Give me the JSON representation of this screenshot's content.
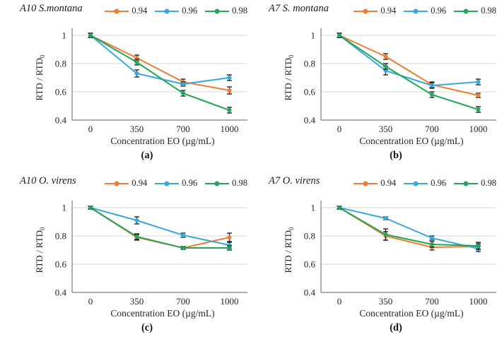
{
  "figure": {
    "background": "#ffffff",
    "grid_color": "#d9d9d9",
    "axis_color": "#7f7f7f",
    "text_color": "#262626",
    "error_bar_color": "#1a1a1a"
  },
  "chart_data": [
    {
      "type": "line",
      "panel": "a",
      "title": "A10 S.montana",
      "caption": "(a)",
      "xlabel": "Concentration EO (µg/mL)",
      "ylabel": "RTD / RTD",
      "ylabel_subscript": "0",
      "categories": [
        "0",
        "350",
        "700",
        "1000"
      ],
      "yticks": [
        1,
        0.8,
        0.6,
        0.4
      ],
      "ylim": [
        0.4,
        1.05
      ],
      "grid": true,
      "legend_position": "top-right",
      "series": [
        {
          "name": "0.94",
          "color": "#ED7D31",
          "values": [
            1.0,
            0.84,
            0.67,
            0.61
          ],
          "errors": [
            0.015,
            0.02,
            0.02,
            0.025
          ]
        },
        {
          "name": "0.96",
          "color": "#36A9DC",
          "values": [
            1.0,
            0.73,
            0.655,
            0.7
          ],
          "errors": [
            0.015,
            0.025,
            0.015,
            0.02
          ]
        },
        {
          "name": "0.98",
          "color": "#24A65A",
          "values": [
            1.0,
            0.81,
            0.59,
            0.47
          ],
          "errors": [
            0.015,
            0.02,
            0.02,
            0.02
          ]
        }
      ]
    },
    {
      "type": "line",
      "panel": "b",
      "title": "A7 S. montana",
      "caption": "(b)",
      "xlabel": "Concentration EO (µg/mL)",
      "ylabel": "RTD / RTD",
      "ylabel_subscript": "0",
      "categories": [
        "0",
        "350",
        "700",
        "1000"
      ],
      "yticks": [
        1,
        0.8,
        0.6,
        0.4
      ],
      "ylim": [
        0.4,
        1.05
      ],
      "grid": true,
      "legend_position": "top-right",
      "series": [
        {
          "name": "0.94",
          "color": "#ED7D31",
          "values": [
            1.0,
            0.85,
            0.65,
            0.575
          ],
          "errors": [
            0.015,
            0.02,
            0.02,
            0.015
          ]
        },
        {
          "name": "0.96",
          "color": "#36A9DC",
          "values": [
            1.0,
            0.75,
            0.645,
            0.67
          ],
          "errors": [
            0.015,
            0.03,
            0.02,
            0.02
          ]
        },
        {
          "name": "0.98",
          "color": "#24A65A",
          "values": [
            1.0,
            0.78,
            0.58,
            0.475
          ],
          "errors": [
            0.015,
            0.02,
            0.02,
            0.02
          ]
        }
      ]
    },
    {
      "type": "line",
      "panel": "c",
      "title": "A10 O. virens",
      "caption": "(c)",
      "xlabel": "Concentration EO (µg/mL)",
      "ylabel": "RTD / RTD",
      "ylabel_subscript": "0",
      "categories": [
        "0",
        "350",
        "700",
        "1000"
      ],
      "yticks": [
        1,
        0.8,
        0.6,
        0.4
      ],
      "ylim": [
        0.4,
        1.05
      ],
      "grid": true,
      "legend_position": "top-right",
      "series": [
        {
          "name": "0.94",
          "color": "#ED7D31",
          "values": [
            1.0,
            0.79,
            0.715,
            0.79
          ],
          "errors": [
            0.01,
            0.02,
            0.01,
            0.03
          ]
        },
        {
          "name": "0.96",
          "color": "#36A9DC",
          "values": [
            1.0,
            0.91,
            0.805,
            0.735
          ],
          "errors": [
            0.01,
            0.025,
            0.015,
            0.02
          ]
        },
        {
          "name": "0.98",
          "color": "#24A65A",
          "values": [
            1.0,
            0.795,
            0.715,
            0.715
          ],
          "errors": [
            0.01,
            0.02,
            0.01,
            0.015
          ]
        }
      ]
    },
    {
      "type": "line",
      "panel": "d",
      "title": "A7 O. virens",
      "caption": "(d)",
      "xlabel": "Concentration EO (µg/mL)",
      "ylabel": "RTD / RTD",
      "ylabel_subscript": "0",
      "categories": [
        "0",
        "350",
        "700",
        "1000"
      ],
      "yticks": [
        1,
        0.8,
        0.6,
        0.4
      ],
      "ylim": [
        0.4,
        1.05
      ],
      "grid": true,
      "legend_position": "top-right",
      "series": [
        {
          "name": "0.94",
          "color": "#ED7D31",
          "values": [
            1.0,
            0.8,
            0.72,
            0.725
          ],
          "errors": [
            0.01,
            0.03,
            0.02,
            0.02
          ]
        },
        {
          "name": "0.96",
          "color": "#36A9DC",
          "values": [
            1.0,
            0.925,
            0.785,
            0.71
          ],
          "errors": [
            0.01,
            0.01,
            0.015,
            0.02
          ]
        },
        {
          "name": "0.98",
          "color": "#24A65A",
          "values": [
            1.0,
            0.81,
            0.74,
            0.73
          ],
          "errors": [
            0.01,
            0.04,
            0.02,
            0.025
          ]
        }
      ]
    }
  ]
}
